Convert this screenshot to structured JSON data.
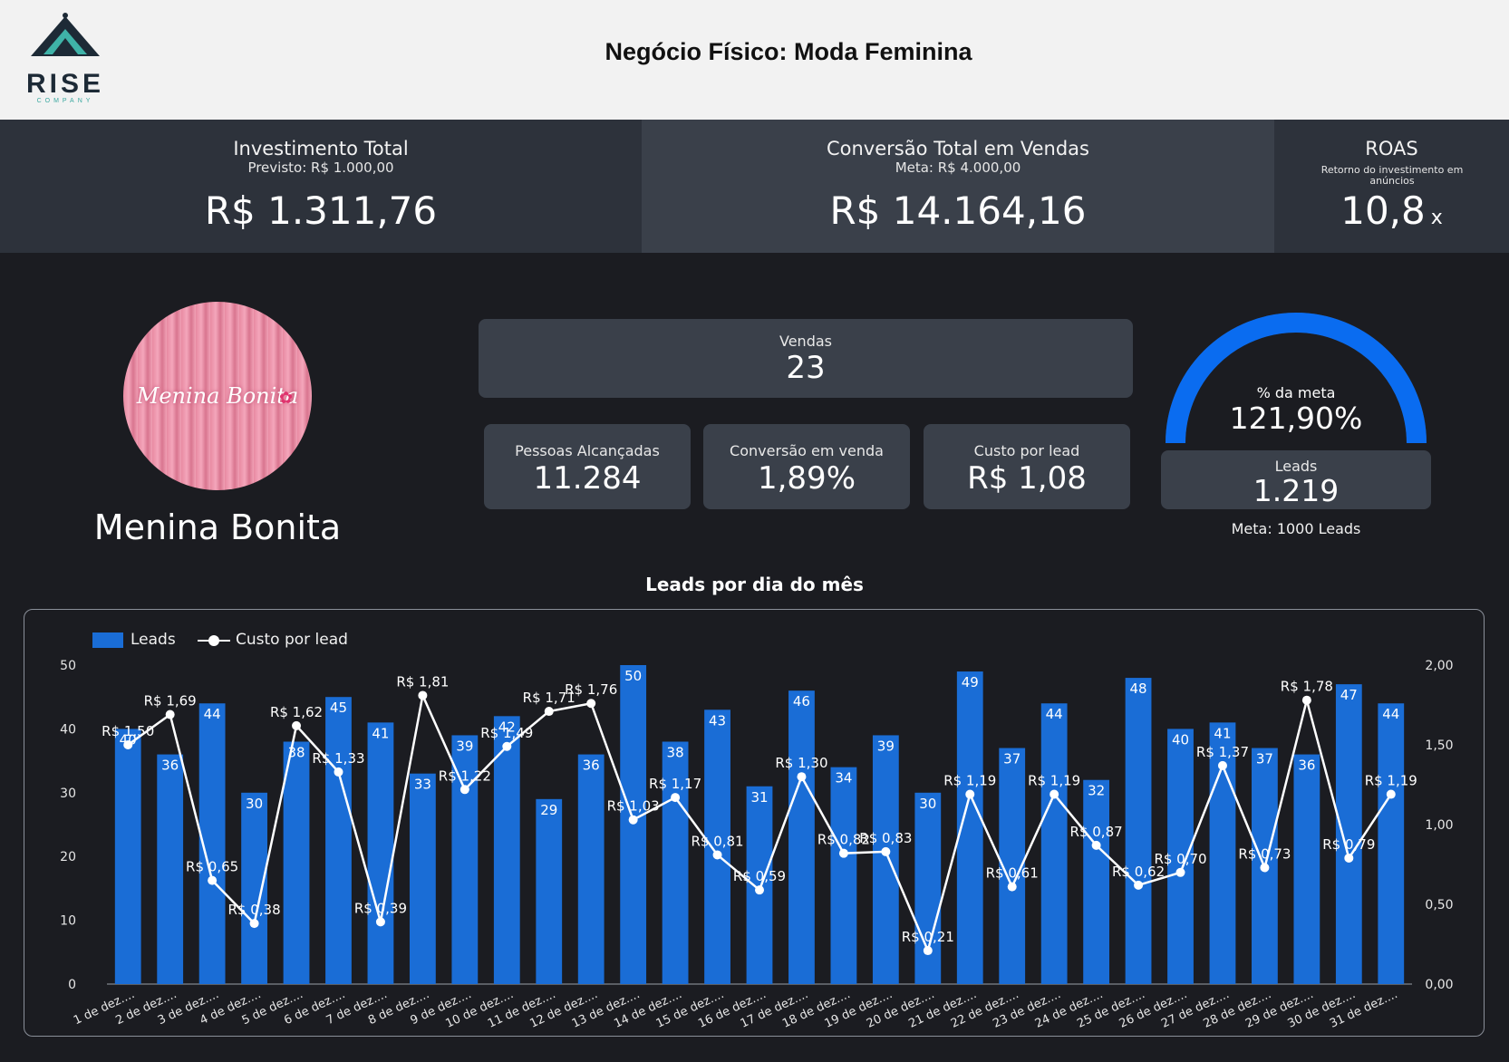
{
  "header": {
    "logo_word": "RISE",
    "logo_sub": "COMPANY",
    "title": "Negócio Físico: Moda Feminina"
  },
  "kpis": {
    "investimento": {
      "title": "Investimento Total",
      "sub": "Previsto: R$ 1.000,00",
      "value": "R$ 1.311,76"
    },
    "conversao_total": {
      "title": "Conversão Total em Vendas",
      "sub": "Meta: R$ 4.000,00",
      "value": "R$ 14.164,16"
    },
    "roas": {
      "title": "ROAS",
      "sub": "Retorno do investimento em anúncios",
      "value": "10,8",
      "unit": "x"
    }
  },
  "brand": {
    "circle_text": "Menina Bonita",
    "name": "Menina Bonita",
    "flower_icon": "flower-icon"
  },
  "cards": {
    "vendas": {
      "label": "Vendas",
      "value": "23"
    },
    "pessoas": {
      "label": "Pessoas Alcançadas",
      "value": "11.284"
    },
    "conversao": {
      "label": "Conversão em venda",
      "value": "1,89%"
    },
    "custo": {
      "label": "Custo por lead",
      "value": "R$ 1,08"
    },
    "leads": {
      "label": "Leads",
      "value": "1.219"
    }
  },
  "gauge": {
    "label": "% da meta",
    "value": "121,90%",
    "fraction": 1.0,
    "color": "#0a6cf0",
    "meta": "Meta: 1000 Leads"
  },
  "chart_title": "Leads por dia do mês",
  "legend": {
    "leads": "Leads",
    "cpl": "Custo por lead"
  },
  "chart_data": {
    "type": "bar",
    "categories": [
      "1 de dez....",
      "2 de dez....",
      "3 de dez....",
      "4 de dez....",
      "5 de dez....",
      "6 de dez....",
      "7 de dez....",
      "8 de dez....",
      "9 de dez....",
      "10 de dez....",
      "11 de dez....",
      "12 de dez....",
      "13 de dez....",
      "14 de dez....",
      "15 de dez....",
      "16 de dez....",
      "17 de dez....",
      "18 de dez....",
      "19 de dez....",
      "20 de dez....",
      "21 de dez....",
      "22 de dez....",
      "23 de dez....",
      "24 de dez....",
      "25 de dez....",
      "26 de dez....",
      "27 de dez....",
      "28 de dez....",
      "29 de dez....",
      "30 de dez....",
      "31 de dez...."
    ],
    "series": [
      {
        "name": "Leads",
        "type": "bar",
        "color": "#1a6dd6",
        "values": [
          40,
          36,
          44,
          30,
          38,
          45,
          41,
          33,
          39,
          42,
          29,
          36,
          50,
          38,
          43,
          31,
          46,
          34,
          39,
          30,
          49,
          37,
          44,
          32,
          48,
          40,
          41,
          37,
          36,
          47,
          44
        ]
      },
      {
        "name": "Custo por lead",
        "type": "line",
        "color": "#ffffff",
        "values": [
          1.5,
          1.69,
          0.65,
          0.38,
          1.62,
          1.33,
          0.39,
          1.81,
          1.22,
          1.49,
          1.71,
          1.76,
          1.03,
          1.17,
          0.81,
          0.59,
          1.3,
          0.82,
          0.83,
          0.21,
          1.19,
          0.61,
          1.19,
          0.87,
          0.62,
          0.7,
          1.37,
          0.73,
          1.78,
          0.79,
          1.19
        ],
        "labels": [
          "R$ 1,50",
          "R$ 1,69",
          "R$ 0,65",
          "R$ 0,38",
          "R$ 1,62",
          "R$ 1,33",
          "R$ 0,39",
          "R$ 1,81",
          "R$ 1,22",
          "R$ 1,49",
          "R$ 1,71",
          "R$ 1,76",
          "R$ 1,03",
          "R$ 1,17",
          "R$ 0,81",
          "R$ 0,59",
          "R$ 1,30",
          "R$ 0,82",
          "R$ 0,83",
          "R$ 0,21",
          "R$ 1,19",
          "R$ 0,61",
          "R$ 1,19",
          "R$ 0,87",
          "R$ 0,62",
          "R$ 0,70",
          "R$ 1,37",
          "R$ 0,73",
          "R$ 1,78",
          "R$ 0,79",
          "R$ 1,19"
        ]
      }
    ],
    "y_left": {
      "ticks": [
        "0",
        "10",
        "20",
        "30",
        "40",
        "50"
      ],
      "ylim": [
        0,
        50
      ]
    },
    "y_right": {
      "ticks": [
        "0,00",
        "0,50",
        "1,00",
        "1,50",
        "2,00"
      ],
      "ylim": [
        0,
        2
      ]
    },
    "grid": false,
    "legend_position": "top-left"
  }
}
